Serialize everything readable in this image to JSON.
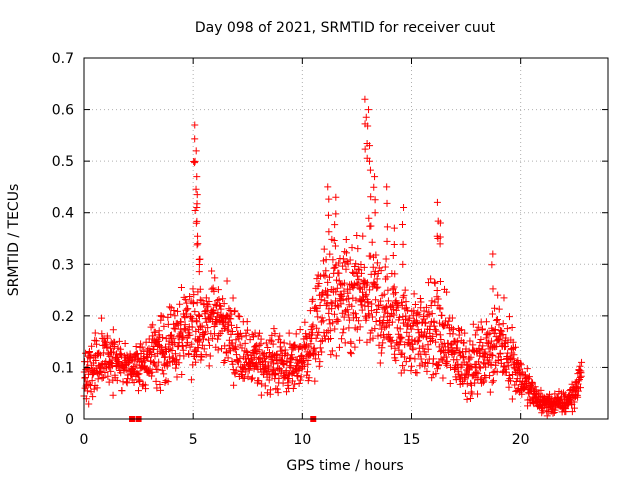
{
  "chart_data": {
    "type": "scatter",
    "title": "Day 098 of 2021, SRMTID for receiver cuut",
    "xlabel": "GPS time / hours",
    "ylabel": "SRMTID / TECUs",
    "xlim": [
      0,
      24
    ],
    "ylim": [
      0,
      0.7
    ],
    "x_ticks": [
      0,
      5,
      10,
      15,
      20
    ],
    "x_tick_labels": [
      "0",
      "5",
      "10",
      "15",
      "20"
    ],
    "y_ticks": [
      0,
      0.1,
      0.2,
      0.3,
      0.4,
      0.5,
      0.6,
      0.7
    ],
    "y_tick_labels": [
      "0",
      "0.1",
      "0.2",
      "0.3",
      "0.4",
      "0.5",
      "0.6",
      "0.7"
    ],
    "grid": true,
    "marker": "plus",
    "color": "#ff0000",
    "series": [
      {
        "name": "SRMTID",
        "trend": {
          "x": [
            0,
            0.3,
            0.6,
            1,
            1.5,
            2,
            2.5,
            3,
            3.5,
            4,
            4.5,
            5,
            5.5,
            6,
            6.5,
            7,
            7.5,
            8,
            8.5,
            9,
            9.5,
            10,
            10.5,
            11,
            11.5,
            12,
            12.5,
            13,
            13.5,
            14,
            14.5,
            15,
            15.5,
            16,
            16.5,
            17,
            17.5,
            18,
            18.5,
            19,
            19.5,
            20,
            20.5,
            21,
            21.5,
            22,
            22.5,
            22.8
          ],
          "y": [
            0.07,
            0.09,
            0.11,
            0.12,
            0.11,
            0.1,
            0.1,
            0.12,
            0.13,
            0.15,
            0.16,
            0.17,
            0.19,
            0.2,
            0.18,
            0.14,
            0.12,
            0.11,
            0.11,
            0.11,
            0.1,
            0.12,
            0.16,
            0.22,
            0.23,
            0.22,
            0.23,
            0.24,
            0.22,
            0.2,
            0.18,
            0.17,
            0.16,
            0.17,
            0.15,
            0.13,
            0.11,
            0.11,
            0.13,
            0.15,
            0.13,
            0.08,
            0.05,
            0.03,
            0.03,
            0.03,
            0.05,
            0.1
          ],
          "spread": [
            0.04,
            0.04,
            0.04,
            0.04,
            0.04,
            0.03,
            0.03,
            0.04,
            0.05,
            0.05,
            0.06,
            0.06,
            0.06,
            0.05,
            0.05,
            0.05,
            0.04,
            0.04,
            0.04,
            0.04,
            0.04,
            0.04,
            0.06,
            0.08,
            0.08,
            0.08,
            0.09,
            0.09,
            0.08,
            0.07,
            0.06,
            0.06,
            0.06,
            0.07,
            0.06,
            0.05,
            0.05,
            0.04,
            0.05,
            0.05,
            0.05,
            0.03,
            0.02,
            0.015,
            0.015,
            0.015,
            0.02,
            0.02
          ]
        },
        "spikes": [
          {
            "x": 5.05,
            "y": 0.57
          },
          {
            "x": 5.1,
            "y": 0.52
          },
          {
            "x": 5.15,
            "y": 0.47
          },
          {
            "x": 5.2,
            "y": 0.41
          },
          {
            "x": 5.25,
            "y": 0.34
          },
          {
            "x": 5.3,
            "y": 0.31
          },
          {
            "x": 11.2,
            "y": 0.45
          },
          {
            "x": 11.5,
            "y": 0.43
          },
          {
            "x": 12.9,
            "y": 0.62
          },
          {
            "x": 13.0,
            "y": 0.6
          },
          {
            "x": 13.1,
            "y": 0.53
          },
          {
            "x": 13.3,
            "y": 0.47
          },
          {
            "x": 13.9,
            "y": 0.45
          },
          {
            "x": 14.2,
            "y": 0.37
          },
          {
            "x": 14.6,
            "y": 0.41
          },
          {
            "x": 16.2,
            "y": 0.42
          },
          {
            "x": 16.3,
            "y": 0.38
          },
          {
            "x": 18.7,
            "y": 0.32
          }
        ],
        "zero_markers": [
          2.2,
          2.5,
          10.5
        ]
      }
    ]
  }
}
